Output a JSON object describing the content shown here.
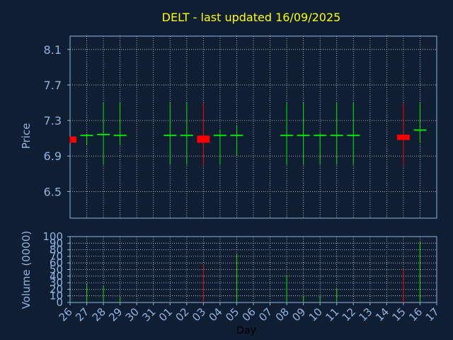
{
  "chart_data": [
    {
      "type": "candlestick",
      "title": "DELT - last updated 16/09/2025",
      "ylabel": "Price",
      "ylim": [
        6.2,
        8.25
      ],
      "yticks": [
        "6.5",
        "6.9",
        "7.3",
        "7.7",
        "8.1"
      ],
      "colors": {
        "up": "#00e400",
        "down": "#ff0000",
        "title": "#ffff00",
        "axis_text": "#8fb4e0",
        "background": "#0f1e32",
        "grid": "#d0d0d0"
      },
      "candles": [
        {
          "day": "26",
          "open": 7.12,
          "high": 7.12,
          "low": 7.05,
          "close": 7.05
        },
        {
          "day": "27",
          "open": 7.14,
          "high": 7.15,
          "low": 7.02,
          "close": 7.14
        },
        {
          "day": "28",
          "open": 7.14,
          "high": 7.5,
          "low": 6.8,
          "close": 7.15
        },
        {
          "day": "29",
          "open": 7.14,
          "high": 7.5,
          "low": 7.02,
          "close": 7.14
        },
        {
          "day": "01",
          "open": 7.14,
          "high": 7.5,
          "low": 6.8,
          "close": 7.14
        },
        {
          "day": "02",
          "open": 7.14,
          "high": 7.5,
          "low": 6.8,
          "close": 7.14
        },
        {
          "day": "03",
          "open": 7.13,
          "high": 7.5,
          "low": 6.8,
          "close": 7.05
        },
        {
          "day": "04",
          "open": 7.14,
          "high": 7.2,
          "low": 6.8,
          "close": 7.14
        },
        {
          "day": "05",
          "open": 7.14,
          "high": 7.25,
          "low": 6.9,
          "close": 7.14
        },
        {
          "day": "08",
          "open": 7.14,
          "high": 7.5,
          "low": 6.8,
          "close": 7.14
        },
        {
          "day": "09",
          "open": 7.14,
          "high": 7.5,
          "low": 6.8,
          "close": 7.14
        },
        {
          "day": "10",
          "open": 7.14,
          "high": 7.16,
          "low": 6.8,
          "close": 7.14
        },
        {
          "day": "11",
          "open": 7.14,
          "high": 7.5,
          "low": 6.8,
          "close": 7.14
        },
        {
          "day": "12",
          "open": 7.14,
          "high": 7.5,
          "low": 6.8,
          "close": 7.14
        },
        {
          "day": "15",
          "open": 7.14,
          "high": 7.5,
          "low": 6.8,
          "close": 7.08
        },
        {
          "day": "16",
          "open": 7.19,
          "high": 7.5,
          "low": 7.05,
          "close": 7.2
        }
      ]
    },
    {
      "type": "bar",
      "xlabel": "Day",
      "ylabel": "Volume (0000)",
      "ylim": [
        0,
        100
      ],
      "yticks": [
        "0",
        "10",
        "20",
        "30",
        "40",
        "50",
        "60",
        "70",
        "80",
        "90",
        "100"
      ],
      "categories": [
        "26",
        "27",
        "28",
        "29",
        "30",
        "31",
        "01",
        "02",
        "03",
        "04",
        "05",
        "06",
        "07",
        "08",
        "09",
        "10",
        "11",
        "12",
        "13",
        "14",
        "15",
        "16",
        "17"
      ],
      "volumes": [
        {
          "day": "26",
          "value": 0,
          "direction": "down"
        },
        {
          "day": "27",
          "value": 28,
          "direction": "up"
        },
        {
          "day": "28",
          "value": 25,
          "direction": "up"
        },
        {
          "day": "29",
          "value": 8,
          "direction": "up"
        },
        {
          "day": "01",
          "value": 0,
          "direction": "up"
        },
        {
          "day": "02",
          "value": 0,
          "direction": "up"
        },
        {
          "day": "03",
          "value": 58,
          "direction": "down"
        },
        {
          "day": "04",
          "value": 0,
          "direction": "up"
        },
        {
          "day": "05",
          "value": 73,
          "direction": "up"
        },
        {
          "day": "08",
          "value": 42,
          "direction": "up"
        },
        {
          "day": "09",
          "value": 10,
          "direction": "up"
        },
        {
          "day": "10",
          "value": 10,
          "direction": "up"
        },
        {
          "day": "11",
          "value": 21,
          "direction": "up"
        },
        {
          "day": "12",
          "value": 0,
          "direction": "up"
        },
        {
          "day": "15",
          "value": 50,
          "direction": "down"
        },
        {
          "day": "16",
          "value": 92,
          "direction": "up"
        }
      ]
    }
  ]
}
